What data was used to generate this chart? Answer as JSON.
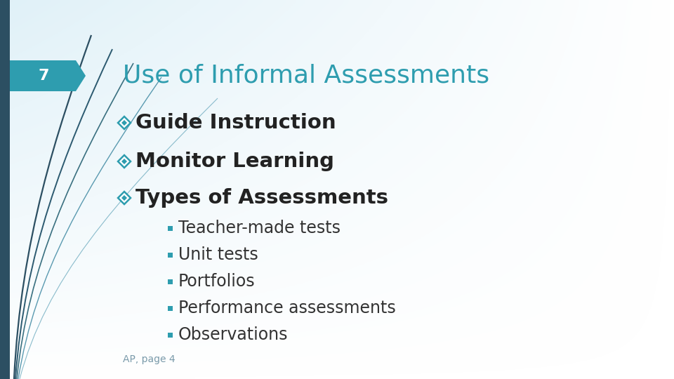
{
  "title": "Use of Informal Assessments",
  "slide_number": "7",
  "title_color": "#2E9DAF",
  "slide_number_bg": "#2E9DAF",
  "slide_number_text_color": "#ffffff",
  "bg_left": "#daeaf0",
  "bg_right": "#f0f7fa",
  "bg_top": "#ffffff",
  "nav_bar_color": "#2c5566",
  "bullet_symbol_color": "#2E9DAF",
  "text_color": "#222222",
  "sub_text_color": "#333333",
  "sub_bullet_color": "#2E9DAF",
  "footer_text": "AP, page 4",
  "footer_color": "#7a9aaa",
  "curve_colors": [
    "#2c4f62",
    "#2c5a70",
    "#3a7080",
    "#5a9ab0",
    "#8abccc"
  ],
  "main_bullets": [
    "Guide Instruction",
    "Monitor Learning",
    "Types of Assessments"
  ],
  "sub_bullets": [
    "Teacher-made tests",
    "Unit tests",
    "Portfolios",
    "Performance assessments",
    "Observations"
  ],
  "title_fontsize": 26,
  "slide_num_fontsize": 16,
  "bullet_fontsize": 21,
  "sub_bullet_fontsize": 17,
  "footer_fontsize": 10
}
